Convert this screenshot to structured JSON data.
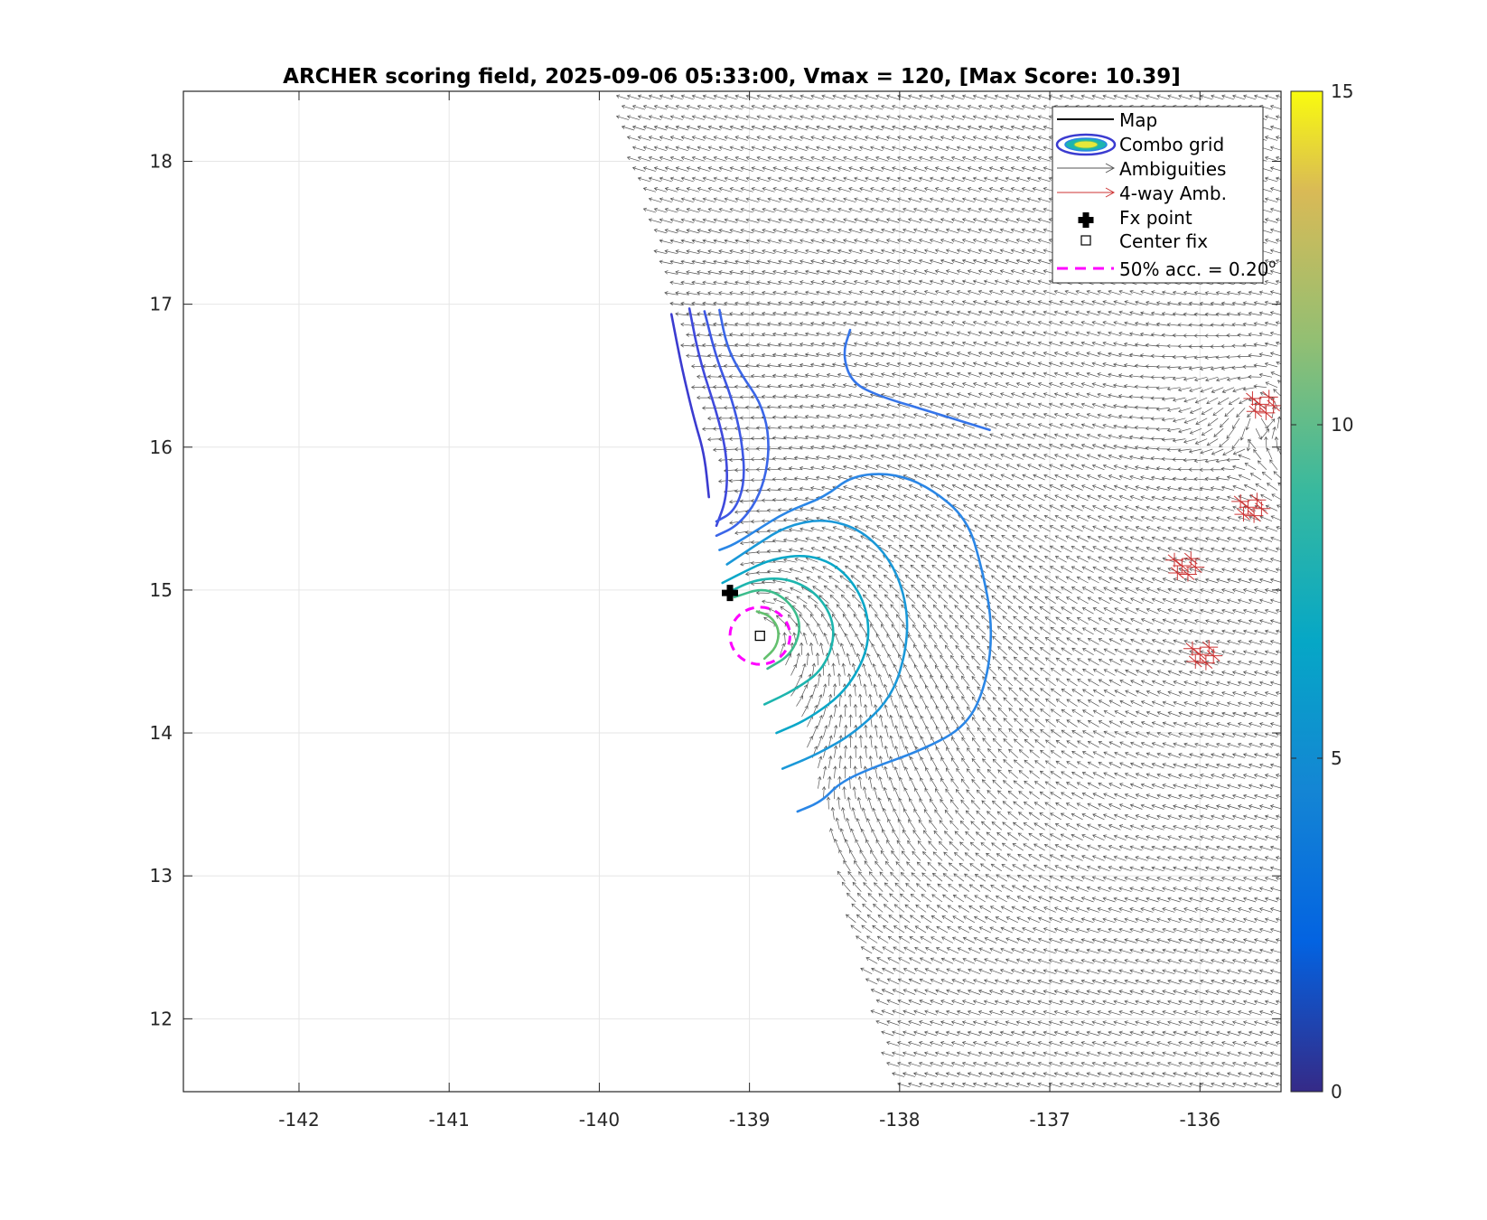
{
  "chart_data": {
    "type": "contour",
    "title": "ARCHER scoring field, 2025-09-06 05:33:00, Vmax = 120, [Max Score: 10.39]",
    "xlabel": "",
    "ylabel": "",
    "xlim": [
      -142.77,
      -135.46
    ],
    "ylim": [
      11.49,
      18.49
    ],
    "x_ticks": [
      -142,
      -141,
      -140,
      -139,
      -138,
      -137,
      -136
    ],
    "y_ticks": [
      12,
      13,
      14,
      15,
      16,
      17,
      18
    ],
    "x_tick_labels": [
      "-142",
      "-141",
      "-140",
      "-139",
      "-138",
      "-137",
      "-136"
    ],
    "y_tick_labels": [
      "12",
      "13",
      "14",
      "15",
      "16",
      "17",
      "18"
    ],
    "grid": true,
    "colorbar": {
      "range": [
        0,
        15
      ],
      "ticks": [
        0,
        5,
        10,
        15
      ],
      "tick_labels": [
        "0",
        "5",
        "10",
        "15"
      ],
      "colormap": "parula"
    },
    "legend": {
      "position": "top-right",
      "entries": [
        "Map",
        "Combo grid",
        "Ambiguities",
        "4-way Amb.",
        "Fx point",
        "Center fix"
      ],
      "accuracy_label": "50% acc. = 0.20",
      "accuracy_superscript": "o"
    },
    "fx_point": {
      "x": -139.13,
      "y": 14.98
    },
    "center_fix": {
      "x": -138.93,
      "y": 14.68
    },
    "accuracy_circle": {
      "center_x": -138.93,
      "center_y": 14.68,
      "radius_deg": 0.2
    },
    "series": [
      {
        "level": 1.5,
        "color": "#3b3bd0",
        "points": [
          [
            -139.52,
            16.93
          ],
          [
            -139.45,
            16.55
          ],
          [
            -139.37,
            16.2
          ],
          [
            -139.3,
            15.95
          ],
          [
            -139.27,
            15.65
          ]
        ]
      },
      {
        "level": 2.5,
        "color": "#3f49dc",
        "points": [
          [
            -139.4,
            16.97
          ],
          [
            -139.33,
            16.6
          ],
          [
            -139.22,
            16.25
          ],
          [
            -139.15,
            15.95
          ],
          [
            -139.15,
            15.65
          ],
          [
            -139.22,
            15.45
          ]
        ]
      },
      {
        "level": 3.2,
        "color": "#3d57e4",
        "points": [
          [
            -139.3,
            16.95
          ],
          [
            -139.22,
            16.62
          ],
          [
            -139.12,
            16.35
          ],
          [
            -139.05,
            16.05
          ],
          [
            -139.03,
            15.75
          ],
          [
            -139.1,
            15.55
          ],
          [
            -139.22,
            15.48
          ]
        ]
      },
      {
        "level": 3.9,
        "color": "#3b66e8",
        "points": [
          [
            -139.2,
            16.96
          ],
          [
            -139.15,
            16.7
          ],
          [
            -139.05,
            16.5
          ],
          [
            -138.93,
            16.32
          ],
          [
            -138.87,
            16.1
          ],
          [
            -138.88,
            15.85
          ],
          [
            -138.95,
            15.62
          ],
          [
            -139.08,
            15.45
          ],
          [
            -139.22,
            15.38
          ]
        ]
      },
      {
        "level": 4.5,
        "color": "#3575ea",
        "points": [
          [
            -138.33,
            16.82
          ],
          [
            -138.38,
            16.65
          ],
          [
            -138.32,
            16.45
          ],
          [
            -138.12,
            16.35
          ],
          [
            -137.8,
            16.25
          ],
          [
            -137.4,
            16.12
          ]
        ]
      },
      {
        "level": 5.2,
        "color": "#2a86e6",
        "points": [
          [
            -138.68,
            13.45
          ],
          [
            -138.52,
            13.52
          ],
          [
            -138.4,
            13.65
          ],
          [
            -138.2,
            13.75
          ],
          [
            -137.85,
            13.88
          ],
          [
            -137.55,
            14.05
          ],
          [
            -137.42,
            14.35
          ],
          [
            -137.38,
            14.75
          ],
          [
            -137.45,
            15.15
          ],
          [
            -137.55,
            15.5
          ],
          [
            -137.8,
            15.72
          ],
          [
            -138.05,
            15.82
          ],
          [
            -138.32,
            15.8
          ],
          [
            -138.5,
            15.65
          ],
          [
            -138.75,
            15.55
          ],
          [
            -138.95,
            15.42
          ],
          [
            -139.1,
            15.32
          ],
          [
            -139.2,
            15.28
          ]
        ]
      },
      {
        "level": 6.0,
        "color": "#1a98d8",
        "points": [
          [
            -138.78,
            13.75
          ],
          [
            -138.55,
            13.85
          ],
          [
            -138.3,
            14.0
          ],
          [
            -138.05,
            14.25
          ],
          [
            -137.95,
            14.6
          ],
          [
            -137.95,
            14.9
          ],
          [
            -138.05,
            15.2
          ],
          [
            -138.25,
            15.42
          ],
          [
            -138.5,
            15.5
          ],
          [
            -138.75,
            15.45
          ],
          [
            -138.95,
            15.32
          ],
          [
            -139.15,
            15.18
          ]
        ]
      },
      {
        "level": 6.8,
        "color": "#0aa7c8",
        "points": [
          [
            -138.82,
            14.0
          ],
          [
            -138.6,
            14.1
          ],
          [
            -138.35,
            14.3
          ],
          [
            -138.2,
            14.6
          ],
          [
            -138.22,
            14.9
          ],
          [
            -138.38,
            15.15
          ],
          [
            -138.6,
            15.25
          ],
          [
            -138.85,
            15.22
          ],
          [
            -139.05,
            15.12
          ],
          [
            -139.18,
            15.05
          ]
        ]
      },
      {
        "level": 7.6,
        "color": "#1db5ae",
        "points": [
          [
            -138.9,
            14.2
          ],
          [
            -138.7,
            14.3
          ],
          [
            -138.5,
            14.45
          ],
          [
            -138.42,
            14.72
          ],
          [
            -138.52,
            14.95
          ],
          [
            -138.72,
            15.08
          ],
          [
            -138.95,
            15.08
          ],
          [
            -139.15,
            14.98
          ]
        ]
      },
      {
        "level": 8.4,
        "color": "#3cbc8c",
        "points": [
          [
            -138.88,
            14.45
          ],
          [
            -138.72,
            14.55
          ],
          [
            -138.65,
            14.75
          ],
          [
            -138.73,
            14.92
          ],
          [
            -138.9,
            15.02
          ],
          [
            -139.1,
            14.95
          ]
        ]
      },
      {
        "level": 9.3,
        "color": "#63c06e",
        "points": [
          [
            -138.9,
            14.52
          ],
          [
            -138.82,
            14.6
          ],
          [
            -138.8,
            14.72
          ],
          [
            -138.86,
            14.82
          ],
          [
            -138.95,
            14.85
          ]
        ]
      }
    ],
    "four_way_ambiguity_clusters": [
      {
        "x": -135.6,
        "y": 16.3
      },
      {
        "x": -135.68,
        "y": 15.58
      },
      {
        "x": -136.12,
        "y": 15.17
      },
      {
        "x": -136.0,
        "y": 14.55
      }
    ]
  },
  "colors": {
    "vectors": "#555555",
    "four_way": "#cc3333",
    "fx_point": "#000000",
    "accuracy_circle": "#ff00ff",
    "grid": "#e6e6e6",
    "axes": "#262626"
  }
}
